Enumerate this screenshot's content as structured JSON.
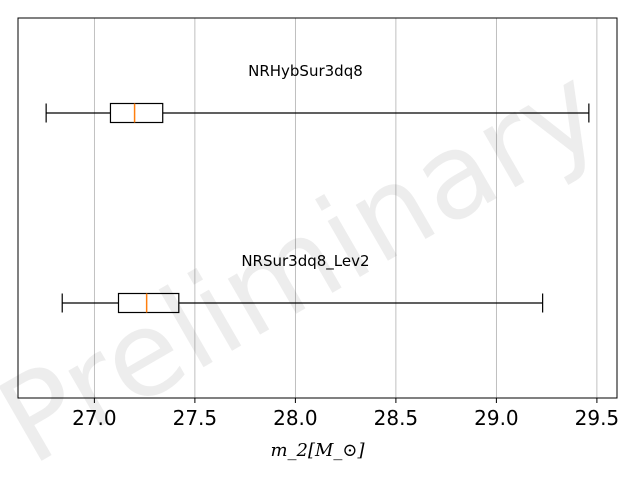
{
  "chart_data": {
    "type": "box",
    "orientation": "horizontal",
    "xlabel": "m_2[M_⊙]",
    "xlim": [
      26.62,
      29.6
    ],
    "xticks": [
      27.0,
      27.5,
      28.0,
      28.5,
      29.0,
      29.5
    ],
    "xtick_labels": [
      "27.0",
      "27.5",
      "28.0",
      "28.5",
      "29.0",
      "29.5"
    ],
    "grid": "vertical",
    "watermark": "Preliminary",
    "boxes": [
      {
        "label": "NRHybSur3dq8",
        "whisker_low": 26.76,
        "q1": 27.08,
        "median": 27.2,
        "q3": 27.34,
        "whisker_high": 29.46
      },
      {
        "label": "NRSur3dq8_Lev2",
        "whisker_low": 26.84,
        "q1": 27.12,
        "median": 27.26,
        "q3": 27.42,
        "whisker_high": 29.23
      }
    ],
    "colors": {
      "box": "#000000",
      "median": "#ff7f0e",
      "grid": "#b0b0b0"
    }
  }
}
